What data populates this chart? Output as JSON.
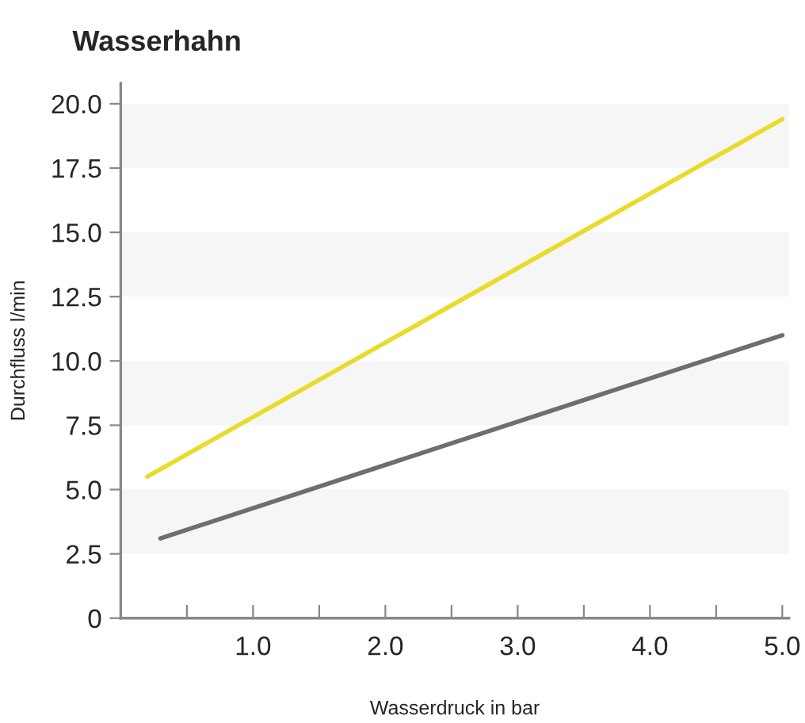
{
  "chart_data": {
    "type": "line",
    "title": "Wasserhahn",
    "xlabel": "Wasserdruck in bar",
    "ylabel": "Durchfluss l/min",
    "series": [
      {
        "color": "#e8dc2a",
        "x": [
          0.2,
          5.0
        ],
        "values": [
          5.5,
          19.4
        ]
      },
      {
        "color": "#6e6e6e",
        "x": [
          0.3,
          5.0
        ],
        "values": [
          3.1,
          11.0
        ]
      }
    ],
    "xlim": [
      0,
      5.05
    ],
    "ylim": [
      0,
      20.8
    ],
    "xticks": [
      {
        "value": 0.5,
        "label": null
      },
      {
        "value": 1.0,
        "label": "1.0"
      },
      {
        "value": 1.5,
        "label": null
      },
      {
        "value": 2.0,
        "label": "2.0"
      },
      {
        "value": 2.5,
        "label": null
      },
      {
        "value": 3.0,
        "label": "3.0"
      },
      {
        "value": 3.5,
        "label": null
      },
      {
        "value": 4.0,
        "label": "4.0"
      },
      {
        "value": 4.5,
        "label": null
      },
      {
        "value": 5.0,
        "label": "5.0"
      }
    ],
    "yticks": [
      0,
      {
        "value": 2.5,
        "label": "2.5"
      },
      {
        "value": 5,
        "label": "5.0"
      },
      {
        "value": 7.5,
        "label": "7.5"
      },
      {
        "value": 10,
        "label": "10.0"
      },
      {
        "value": 12.5,
        "label": "12.5"
      },
      {
        "value": 15,
        "label": "15.0"
      },
      {
        "value": 17.5,
        "label": "17.5"
      },
      {
        "value": 20,
        "label": "20.0"
      }
    ],
    "bands": [
      {
        "axis": "y",
        "from": 2.5,
        "to": 5,
        "color": "#f6f6f6"
      },
      {
        "axis": "y",
        "from": 7.5,
        "to": 10,
        "color": "#f6f6f6"
      },
      {
        "axis": "y",
        "from": 12.5,
        "to": 15,
        "color": "#f6f6f6"
      },
      {
        "axis": "y",
        "from": 17.5,
        "to": 20,
        "color": "#f6f6f6"
      }
    ],
    "grid": false
  }
}
